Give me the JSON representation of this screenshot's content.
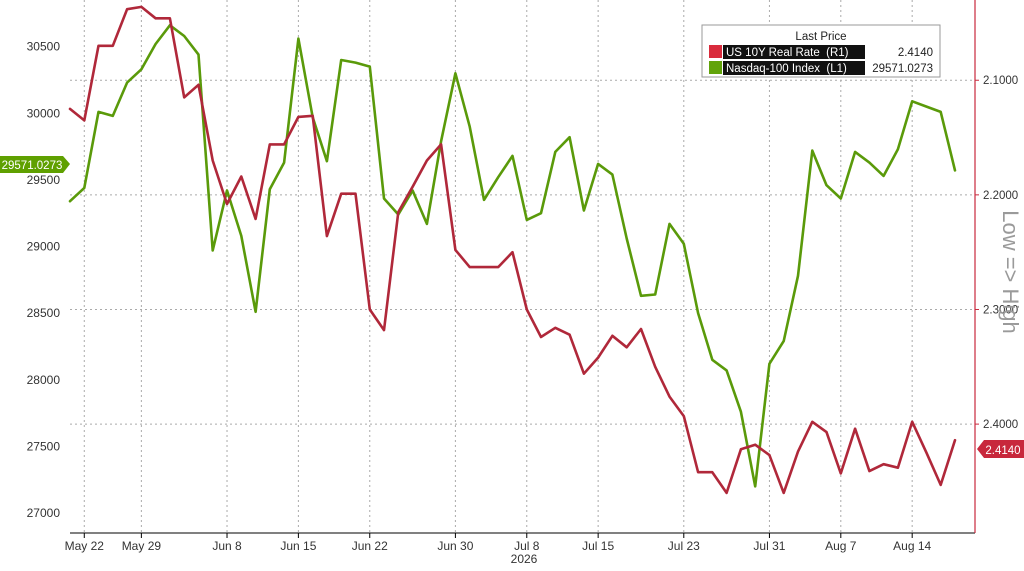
{
  "chart_data": {
    "type": "line",
    "x_labels": [
      "May 22",
      "May 29",
      "Jun 8",
      "Jun 15",
      "Jun 22",
      "Jun 30",
      "Jul 8",
      "Jul 15",
      "Jul 23",
      "Jul 31",
      "Aug 7",
      "Aug 14"
    ],
    "x_label_index": [
      1,
      5,
      11,
      16,
      21,
      27,
      32,
      37,
      43,
      49,
      54,
      59
    ],
    "year_label": "2026",
    "left_axis": {
      "ticks": [
        27000,
        27500,
        28000,
        28500,
        29000,
        29500,
        30000,
        30500
      ],
      "ylim": [
        26850,
        30850
      ]
    },
    "right_axis": {
      "ticks": [
        "2.1000",
        "2.2000",
        "2.3000",
        "2.4000"
      ],
      "tick_values": [
        2.1,
        2.2,
        2.3,
        2.4
      ],
      "ylim": [
        2.03,
        2.495
      ],
      "inverted": true,
      "label": "Low => High"
    },
    "legend": {
      "title": "Last Price",
      "entries": [
        {
          "name": "US 10Y Real Rate  (R1)",
          "value": "2.4140",
          "color": "#c8283c"
        },
        {
          "name": "Nasdaq-100 Index  (L1)",
          "value": "29571.0273",
          "color": "#5fa000"
        }
      ]
    },
    "last_value_tags": {
      "left": "29571.0273",
      "right": "2.4140"
    },
    "series": [
      {
        "name": "Nasdaq-100 Index",
        "axis": "left",
        "color": "#5a9a0a",
        "values": [
          29340,
          29440,
          30010,
          29980,
          30230,
          30330,
          30520,
          30660,
          30580,
          30440,
          28970,
          29420,
          29080,
          28510,
          29430,
          29630,
          30560,
          29970,
          29640,
          30400,
          30380,
          30350,
          29360,
          29240,
          29420,
          29170,
          29790,
          30300,
          29900,
          29350,
          29520,
          29680,
          29200,
          29250,
          29710,
          29820,
          29270,
          29620,
          29540,
          29060,
          28630,
          28640,
          29170,
          29020,
          28500,
          28150,
          28070,
          27760,
          27200,
          28120,
          28290,
          28780,
          29720,
          29460,
          29360,
          29710,
          29630,
          29530,
          29730,
          30090,
          30050,
          30010,
          29571.0273
        ]
      },
      {
        "name": "US 10Y Real Rate",
        "axis": "right",
        "color": "#b0283a",
        "values": [
          2.125,
          2.135,
          2.07,
          2.07,
          2.038,
          2.036,
          2.046,
          2.046,
          2.115,
          2.104,
          2.17,
          2.208,
          2.184,
          2.221,
          2.156,
          2.156,
          2.132,
          2.131,
          2.236,
          2.199,
          2.199,
          2.3,
          2.318,
          2.215,
          2.193,
          2.17,
          2.156,
          2.248,
          2.263,
          2.263,
          2.263,
          2.25,
          2.3,
          2.324,
          2.316,
          2.322,
          2.356,
          2.342,
          2.323,
          2.333,
          2.317,
          2.35,
          2.376,
          2.393,
          2.442,
          2.442,
          2.46,
          2.422,
          2.418,
          2.427,
          2.46,
          2.424,
          2.398,
          2.407,
          2.443,
          2.404,
          2.441,
          2.435,
          2.438,
          2.398,
          2.425,
          2.453,
          2.414
        ]
      }
    ]
  }
}
